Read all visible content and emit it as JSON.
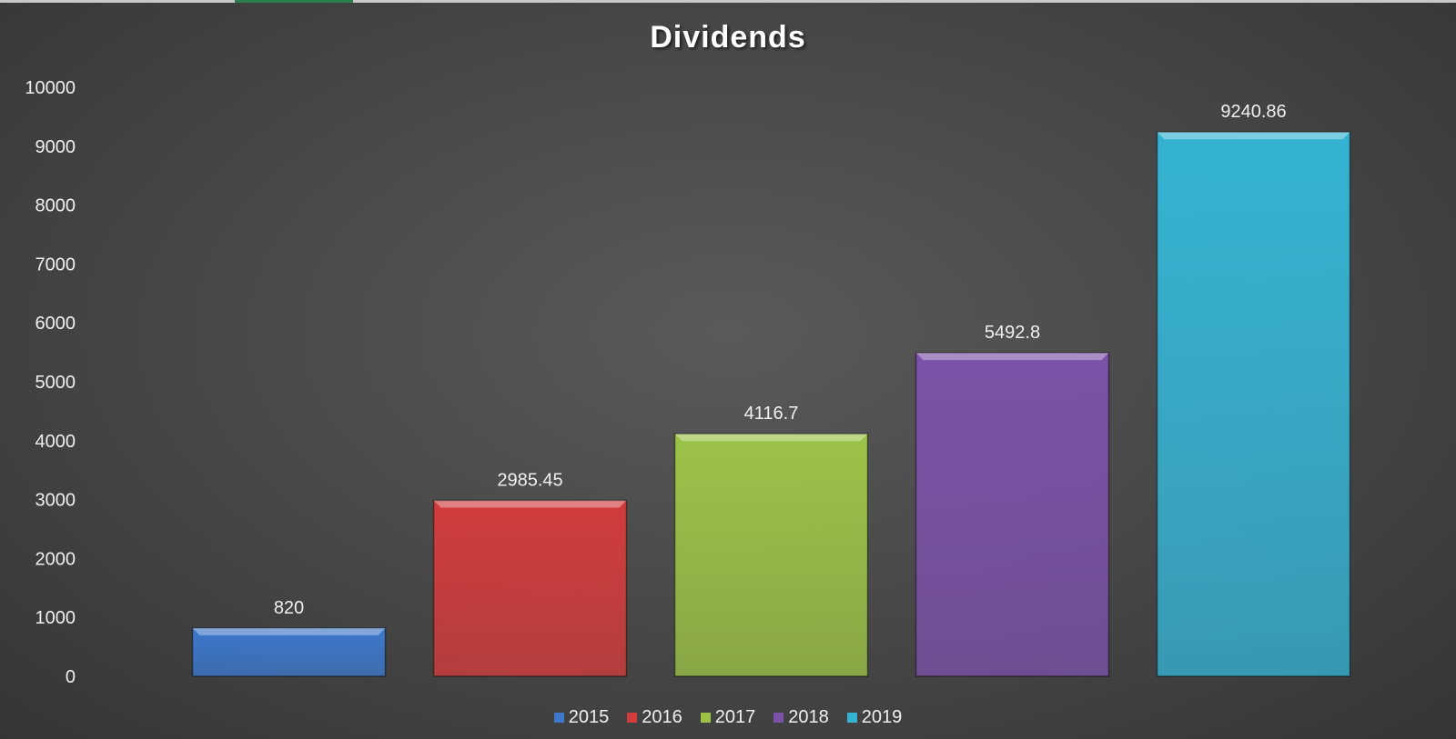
{
  "chart_data": {
    "type": "bar",
    "title": "Dividends",
    "xlabel": "",
    "ylabel": "",
    "ylim": [
      0,
      10000
    ],
    "ytick_step": 1000,
    "grid": false,
    "legend_position": "bottom",
    "categories": [
      "2015",
      "2016",
      "2017",
      "2018",
      "2019"
    ],
    "values": [
      820,
      2985.45,
      4116.7,
      5492.8,
      9240.86
    ],
    "data_labels": [
      "820",
      "2985.45",
      "4116.7",
      "5492.8",
      "9240.86"
    ],
    "colors": [
      "#3d78cc",
      "#d23c3c",
      "#9bc247",
      "#7b52a8",
      "#35b3d3"
    ]
  }
}
